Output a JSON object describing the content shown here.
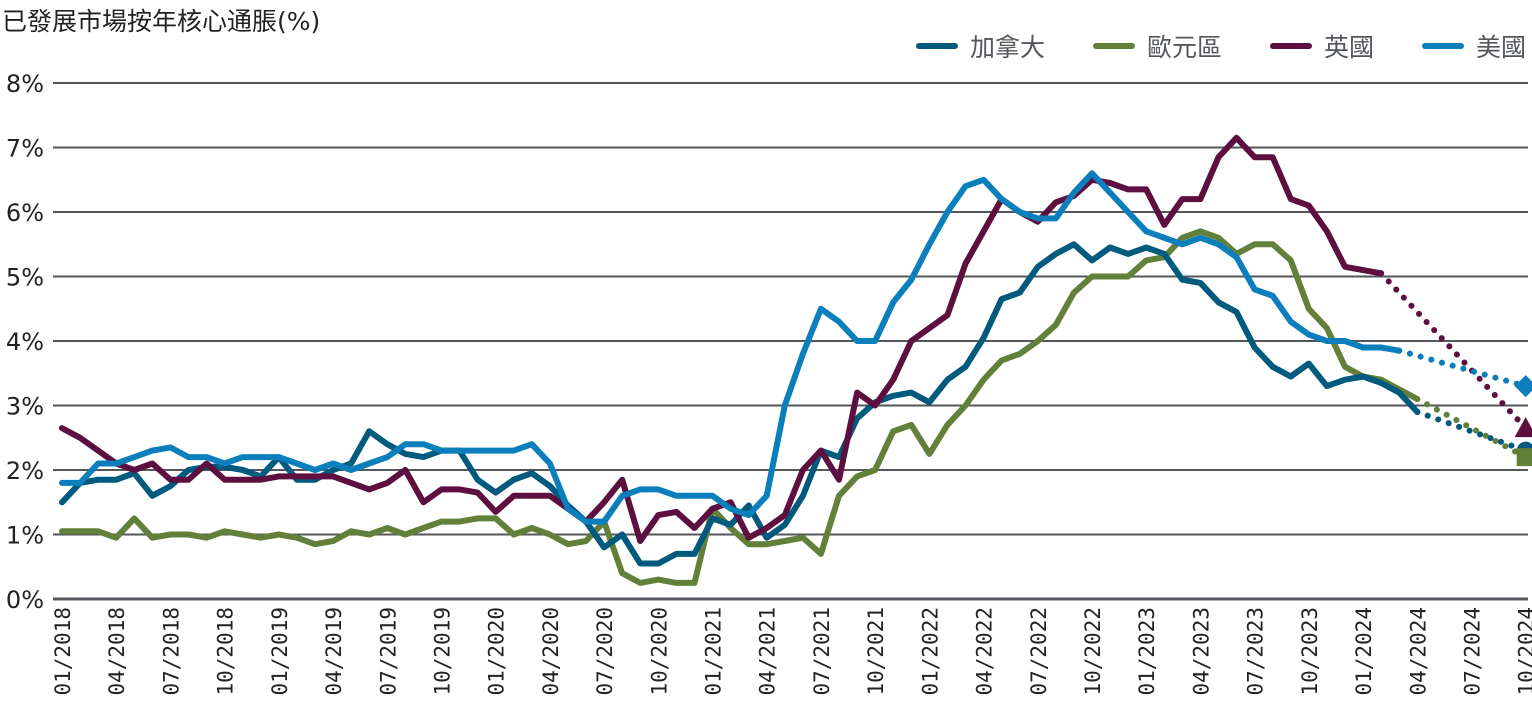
{
  "title": "已發展市場按年核心通脹(%)",
  "legend": [
    {
      "label": "加拿大",
      "color": "#005a7e"
    },
    {
      "label": "歐元區",
      "color": "#62803a"
    },
    {
      "label": "英國",
      "color": "#5d1040"
    },
    {
      "label": "美國",
      "color": "#0b7fbc"
    }
  ],
  "chart_data": {
    "type": "line",
    "title": "已發展市場按年核心通脹(%)",
    "xlabel": "",
    "ylabel": "",
    "ylim": [
      0,
      8
    ],
    "yticks": [
      "0%",
      "1%",
      "2%",
      "3%",
      "4%",
      "5%",
      "6%",
      "7%",
      "8%"
    ],
    "grid": "horizontal",
    "legend_position": "top-right",
    "x_start": "01/2018",
    "x_frequency": "monthly",
    "xticks": [
      "01/2018",
      "04/2018",
      "07/2018",
      "10/2018",
      "01/2019",
      "04/2019",
      "07/2019",
      "10/2019",
      "01/2020",
      "04/2020",
      "07/2020",
      "10/2020",
      "01/2021",
      "04/2021",
      "07/2021",
      "10/2021",
      "01/2022",
      "04/2022",
      "07/2022",
      "10/2022",
      "01/2023",
      "04/2023",
      "07/2023",
      "10/2023",
      "01/2024",
      "04/2024",
      "07/2024",
      "10/2024"
    ],
    "series": [
      {
        "name": "加拿大",
        "color": "#005a7e",
        "values": [
          1.5,
          1.8,
          1.85,
          1.85,
          1.95,
          1.6,
          1.75,
          2.0,
          2.05,
          2.05,
          2.0,
          1.9,
          2.2,
          1.85,
          1.85,
          2.0,
          2.1,
          2.6,
          2.4,
          2.25,
          2.2,
          2.3,
          2.3,
          1.85,
          1.65,
          1.85,
          1.95,
          1.75,
          1.45,
          1.2,
          0.8,
          1.0,
          0.55,
          0.55,
          0.7,
          0.7,
          1.25,
          1.15,
          1.45,
          0.95,
          1.15,
          1.6,
          2.3,
          2.2,
          2.8,
          3.05,
          3.15,
          3.2,
          3.05,
          3.4,
          3.6,
          4.05,
          4.65,
          4.75,
          5.15,
          5.35,
          5.5,
          5.25,
          5.45,
          5.35,
          5.45,
          5.35,
          4.95,
          4.9,
          4.6,
          4.45,
          3.9,
          3.6,
          3.45,
          3.65,
          3.3,
          3.4,
          3.45,
          3.35,
          3.2,
          2.9
        ],
        "forecast": {
          "start_index": 71,
          "end_label": "10/2024",
          "end_value": 2.3,
          "marker": "circle",
          "line_style": "dotted"
        }
      },
      {
        "name": "歐元區",
        "color": "#62803a",
        "values": [
          1.05,
          1.05,
          1.05,
          0.95,
          1.25,
          0.95,
          1.0,
          1.0,
          0.95,
          1.05,
          1.0,
          0.95,
          1.0,
          0.95,
          0.85,
          0.9,
          1.05,
          1.0,
          1.1,
          1.0,
          1.1,
          1.2,
          1.2,
          1.25,
          1.25,
          1.0,
          1.1,
          1.0,
          0.85,
          0.9,
          1.2,
          0.4,
          0.25,
          0.3,
          0.25,
          0.25,
          1.4,
          1.1,
          0.85,
          0.85,
          0.9,
          0.95,
          0.7,
          1.6,
          1.9,
          2.0,
          2.6,
          2.7,
          2.25,
          2.7,
          3.0,
          3.4,
          3.7,
          3.8,
          4.0,
          4.25,
          4.75,
          5.0,
          5.0,
          5.0,
          5.25,
          5.3,
          5.6,
          5.7,
          5.6,
          5.35,
          5.5,
          5.5,
          5.25,
          4.5,
          4.2,
          3.6,
          3.45,
          3.4,
          3.25,
          3.1
        ],
        "forecast": {
          "start_index": 71,
          "end_label": "10/2024",
          "end_value": 2.2,
          "marker": "square",
          "line_style": "dotted"
        }
      },
      {
        "name": "英國",
        "color": "#5d1040",
        "values": [
          2.65,
          2.5,
          2.3,
          2.1,
          2.0,
          2.1,
          1.85,
          1.85,
          2.1,
          1.85,
          1.85,
          1.85,
          1.9,
          1.9,
          1.9,
          1.9,
          1.8,
          1.7,
          1.8,
          2.0,
          1.5,
          1.7,
          1.7,
          1.65,
          1.35,
          1.6,
          1.6,
          1.6,
          1.4,
          1.2,
          1.5,
          1.85,
          0.9,
          1.3,
          1.35,
          1.1,
          1.4,
          1.5,
          0.95,
          1.1,
          1.3,
          2.0,
          2.3,
          1.85,
          3.2,
          3.0,
          3.4,
          4.0,
          4.2,
          4.4,
          5.2,
          5.7,
          6.2,
          6.0,
          5.85,
          6.15,
          6.25,
          6.5,
          6.45,
          6.35,
          6.35,
          5.8,
          6.2,
          6.2,
          6.85,
          7.15,
          6.85,
          6.85,
          6.2,
          6.1,
          5.7,
          5.15,
          5.1,
          5.05
        ],
        "forecast": {
          "start_index": 71,
          "end_label": "10/2024",
          "end_value": 2.65,
          "marker": "triangle",
          "line_style": "dotted"
        }
      },
      {
        "name": "美國",
        "color": "#0b7fbc",
        "values": [
          1.8,
          1.8,
          2.1,
          2.1,
          2.2,
          2.3,
          2.35,
          2.2,
          2.2,
          2.1,
          2.2,
          2.2,
          2.2,
          2.1,
          2.0,
          2.1,
          2.0,
          2.1,
          2.2,
          2.4,
          2.4,
          2.3,
          2.3,
          2.3,
          2.3,
          2.3,
          2.4,
          2.1,
          1.4,
          1.2,
          1.2,
          1.6,
          1.7,
          1.7,
          1.6,
          1.6,
          1.6,
          1.4,
          1.3,
          1.6,
          3.0,
          3.8,
          4.5,
          4.3,
          4.0,
          4.0,
          4.6,
          4.95,
          5.5,
          6.0,
          6.4,
          6.5,
          6.2,
          6.0,
          5.9,
          5.9,
          6.3,
          6.6,
          6.3,
          6.0,
          5.7,
          5.6,
          5.5,
          5.6,
          5.5,
          5.3,
          4.8,
          4.7,
          4.3,
          4.1,
          4.0,
          4.0,
          3.9,
          3.9,
          3.85
        ],
        "forecast": {
          "start_index": 71,
          "end_label": "10/2024",
          "end_value": 3.3,
          "marker": "diamond",
          "line_style": "dotted"
        }
      }
    ]
  }
}
